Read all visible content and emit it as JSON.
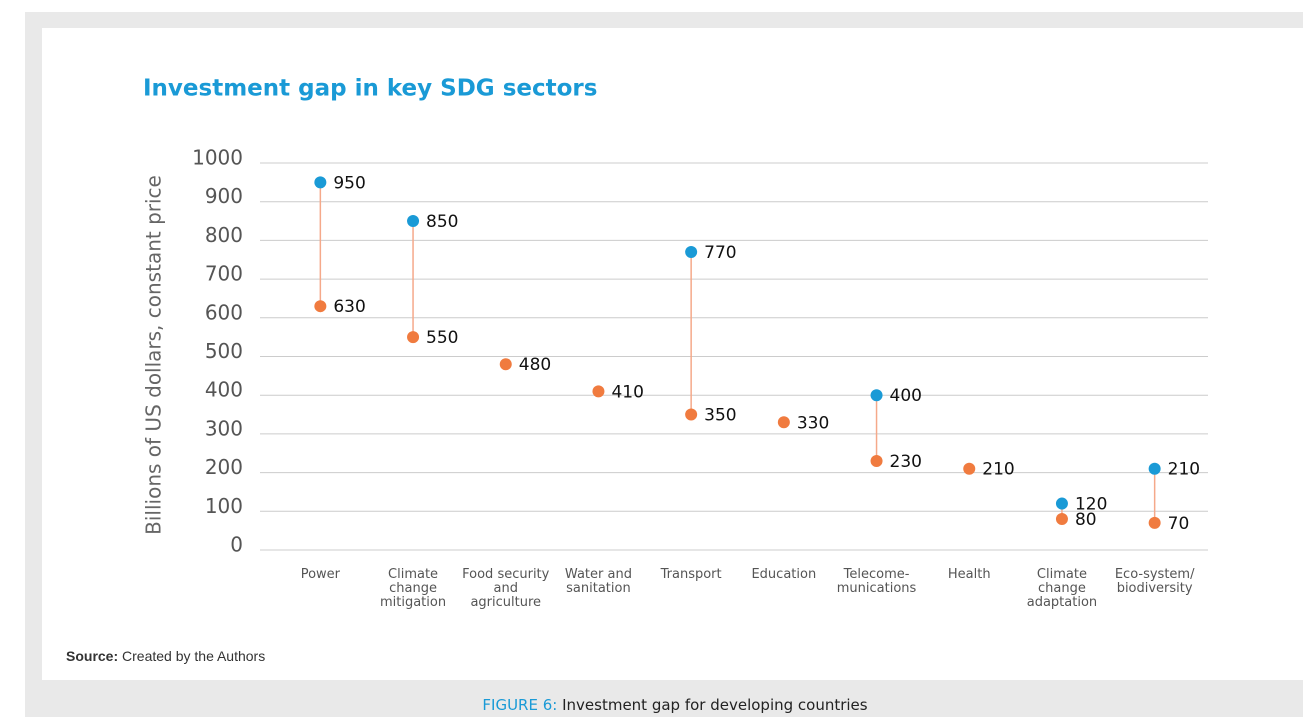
{
  "chart_data": {
    "type": "dumbbell",
    "title": "Investment gap in key SDG sectors",
    "y_label": "Billions of US dollars, constant price",
    "categories": [
      "Power",
      "Climate change mitigation",
      "Food security and agriculture",
      "Water and sanitation",
      "Transport",
      "Education",
      "Telecome-munications",
      "Health",
      "Climate change adaptation",
      "Eco-system/ biodiversity"
    ],
    "series": [
      {
        "color": "#1a9ad6",
        "values": [
          950,
          850,
          null,
          null,
          770,
          null,
          400,
          null,
          120,
          210
        ]
      },
      {
        "color": "#f07b3f",
        "values": [
          630,
          550,
          480,
          410,
          350,
          330,
          230,
          210,
          80,
          70
        ]
      }
    ],
    "connector_color": "#f5a98a",
    "ylim": [
      0,
      1000
    ],
    "yticks": [
      0,
      100,
      200,
      300,
      400,
      500,
      600,
      700,
      800,
      900,
      1000
    ],
    "grid": true,
    "source_label": "Source:",
    "source": "Created by the Authors",
    "caption_label": "FIGURE 6:",
    "caption": "Investment gap for developing countries"
  }
}
